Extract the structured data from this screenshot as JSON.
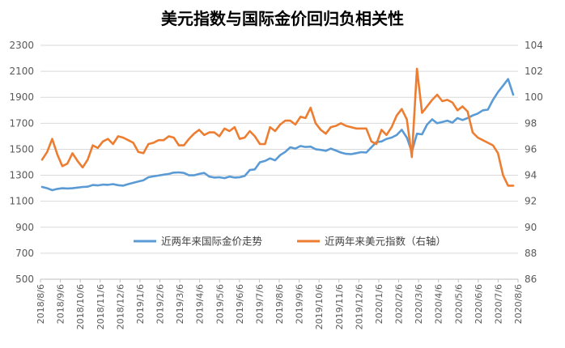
{
  "chart_data": {
    "type": "line",
    "title": "美元指数与国际金价回归负相关性",
    "xlabel": "",
    "ylabel": "",
    "y_left": {
      "min": 500,
      "max": 2300,
      "step": 200,
      "ticks": [
        "500",
        "700",
        "900",
        "1100",
        "1300",
        "1500",
        "1700",
        "1900",
        "2100",
        "2300"
      ]
    },
    "y_right": {
      "min": 86,
      "max": 104,
      "step": 2,
      "ticks": [
        "86",
        "88",
        "90",
        "92",
        "94",
        "96",
        "98",
        "100",
        "102",
        "104"
      ]
    },
    "x_ticks": [
      "2018/8/6",
      "2018/9/6",
      "2018/10/6",
      "2018/11/6",
      "2018/12/6",
      "2019/1/6",
      "2019/2/6",
      "2019/3/6",
      "2019/4/6",
      "2019/5/6",
      "2019/6/6",
      "2019/7/6",
      "2019/8/6",
      "2019/9/6",
      "2019/10/6",
      "2019/11/6",
      "2019/12/6",
      "2020/1/6",
      "2020/2/6",
      "2020/3/6",
      "2020/4/6",
      "2020/5/6",
      "2020/6/6",
      "2020/7/6",
      "2020/8/6"
    ],
    "grid": true,
    "legend_position": "center",
    "series": [
      {
        "name": "近两年来国际金价走势",
        "axis": "left",
        "color": "#5B9BD5",
        "values": [
          1210,
          1200,
          1185,
          1195,
          1200,
          1198,
          1200,
          1205,
          1210,
          1212,
          1225,
          1222,
          1228,
          1226,
          1232,
          1224,
          1220,
          1232,
          1242,
          1252,
          1262,
          1285,
          1292,
          1298,
          1305,
          1310,
          1320,
          1322,
          1318,
          1300,
          1300,
          1310,
          1318,
          1290,
          1282,
          1285,
          1278,
          1290,
          1282,
          1285,
          1295,
          1340,
          1345,
          1400,
          1410,
          1430,
          1415,
          1455,
          1480,
          1515,
          1505,
          1525,
          1518,
          1520,
          1500,
          1495,
          1488,
          1505,
          1490,
          1475,
          1465,
          1462,
          1470,
          1478,
          1475,
          1515,
          1555,
          1560,
          1580,
          1590,
          1610,
          1650,
          1590,
          1480,
          1620,
          1615,
          1690,
          1730,
          1700,
          1710,
          1720,
          1705,
          1740,
          1725,
          1740,
          1760,
          1775,
          1800,
          1805,
          1880,
          1940,
          1990,
          2040,
          1920
        ]
      },
      {
        "name": "近两年来美元指数（右轴）",
        "axis": "right",
        "color": "#ED7D31",
        "values": [
          95.2,
          95.8,
          96.8,
          95.6,
          94.7,
          94.9,
          95.7,
          95.1,
          94.6,
          95.2,
          96.3,
          96.1,
          96.6,
          96.8,
          96.4,
          97.0,
          96.9,
          96.7,
          96.5,
          95.8,
          95.7,
          96.4,
          96.5,
          96.7,
          96.7,
          97.0,
          96.9,
          96.3,
          96.3,
          96.8,
          97.2,
          97.5,
          97.1,
          97.3,
          97.3,
          97.0,
          97.6,
          97.4,
          97.7,
          96.8,
          96.9,
          97.4,
          97.0,
          96.4,
          96.4,
          97.7,
          97.4,
          97.9,
          98.2,
          98.2,
          97.9,
          98.5,
          98.4,
          99.2,
          98.0,
          97.5,
          97.2,
          97.7,
          97.8,
          98.0,
          97.8,
          97.7,
          97.6,
          97.6,
          97.6,
          96.6,
          96.4,
          97.5,
          97.1,
          97.7,
          98.6,
          99.1,
          98.3,
          95.4,
          102.2,
          98.8,
          99.3,
          99.8,
          100.2,
          99.7,
          99.8,
          99.6,
          99.0,
          99.3,
          98.9,
          97.3,
          96.9,
          96.7,
          96.5,
          96.3,
          95.7,
          94.0,
          93.2,
          93.2
        ]
      }
    ]
  }
}
